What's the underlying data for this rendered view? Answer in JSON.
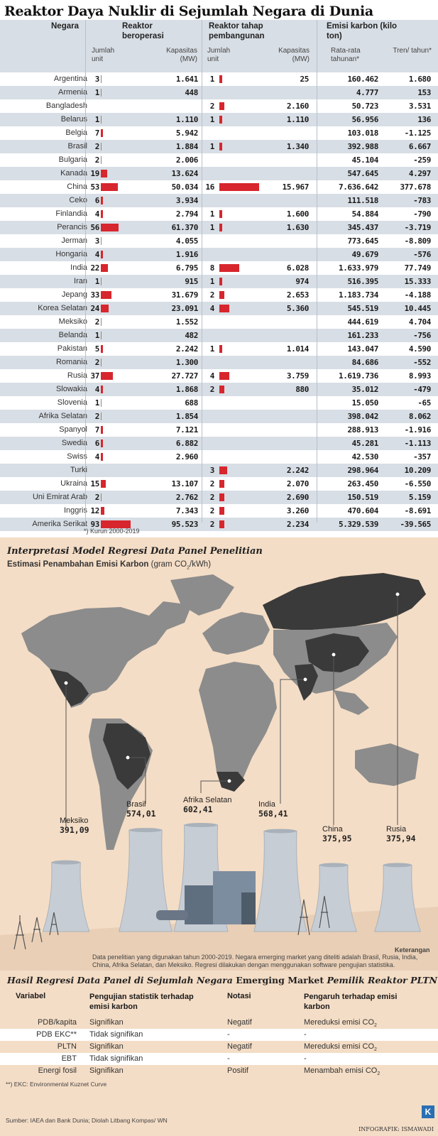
{
  "title": "Reaktor Daya Nuklir di Sejumlah Negara di Dunia",
  "table": {
    "headers": {
      "country": "Negara",
      "operating": "Reaktor beroperasi",
      "construction": "Reaktor tahap pembangunan",
      "emission": "Emisi karbon (kilo ton)",
      "units": "Jumlah unit",
      "capacity": "Kapasitas (MW)",
      "annual": "Rata-rata tahunan*",
      "trend": "Tren/ tahun*"
    },
    "rows": [
      {
        "country": "Argentina",
        "op_units": "3",
        "op_cap": "1.641",
        "con_units": "1",
        "con_cap": "25",
        "em_avg": "160.462",
        "em_trend": "1.680"
      },
      {
        "country": "Armenia",
        "op_units": "1",
        "op_cap": "448",
        "con_units": "",
        "con_cap": "",
        "em_avg": "4.777",
        "em_trend": "153"
      },
      {
        "country": "Bangladesh",
        "op_units": "",
        "op_cap": "",
        "con_units": "2",
        "con_cap": "2.160",
        "em_avg": "50.723",
        "em_trend": "3.531"
      },
      {
        "country": "Belarus",
        "op_units": "1",
        "op_cap": "1.110",
        "con_units": "1",
        "con_cap": "1.110",
        "em_avg": "56.956",
        "em_trend": "136"
      },
      {
        "country": "Belgia",
        "op_units": "7",
        "op_cap": "5.942",
        "con_units": "",
        "con_cap": "",
        "em_avg": "103.018",
        "em_trend": "-1.125"
      },
      {
        "country": "Brasil",
        "op_units": "2",
        "op_cap": "1.884",
        "con_units": "1",
        "con_cap": "1.340",
        "em_avg": "392.988",
        "em_trend": "6.667"
      },
      {
        "country": "Bulgaria",
        "op_units": "2",
        "op_cap": "2.006",
        "con_units": "",
        "con_cap": "",
        "em_avg": "45.104",
        "em_trend": "-259"
      },
      {
        "country": "Kanada",
        "op_units": "19",
        "op_cap": "13.624",
        "con_units": "",
        "con_cap": "",
        "em_avg": "547.645",
        "em_trend": "4.297"
      },
      {
        "country": "China",
        "op_units": "53",
        "op_cap": "50.034",
        "con_units": "16",
        "con_cap": "15.967",
        "em_avg": "7.636.642",
        "em_trend": "377.678"
      },
      {
        "country": "Ceko",
        "op_units": "6",
        "op_cap": "3.934",
        "con_units": "",
        "con_cap": "",
        "em_avg": "111.518",
        "em_trend": "-783"
      },
      {
        "country": "Finlandia",
        "op_units": "4",
        "op_cap": "2.794",
        "con_units": "1",
        "con_cap": "1.600",
        "em_avg": "54.884",
        "em_trend": "-790"
      },
      {
        "country": "Perancis",
        "op_units": "56",
        "op_cap": "61.370",
        "con_units": "1",
        "con_cap": "1.630",
        "em_avg": "345.437",
        "em_trend": "-3.719"
      },
      {
        "country": "Jerman",
        "op_units": "3",
        "op_cap": "4.055",
        "con_units": "",
        "con_cap": "",
        "em_avg": "773.645",
        "em_trend": "-8.809"
      },
      {
        "country": "Hongaria",
        "op_units": "4",
        "op_cap": "1.916",
        "con_units": "",
        "con_cap": "",
        "em_avg": "49.679",
        "em_trend": "-576"
      },
      {
        "country": "India",
        "op_units": "22",
        "op_cap": "6.795",
        "con_units": "8",
        "con_cap": "6.028",
        "em_avg": "1.633.979",
        "em_trend": "77.749"
      },
      {
        "country": "Iran",
        "op_units": "1",
        "op_cap": "915",
        "con_units": "1",
        "con_cap": "974",
        "em_avg": "516.395",
        "em_trend": "15.333"
      },
      {
        "country": "Jepang",
        "op_units": "33",
        "op_cap": "31.679",
        "con_units": "2",
        "con_cap": "2.653",
        "em_avg": "1.183.734",
        "em_trend": "-4.188"
      },
      {
        "country": "Korea Selatan",
        "op_units": "24",
        "op_cap": "23.091",
        "con_units": "4",
        "con_cap": "5.360",
        "em_avg": "545.519",
        "em_trend": "10.445"
      },
      {
        "country": "Meksiko",
        "op_units": "2",
        "op_cap": "1.552",
        "con_units": "",
        "con_cap": "",
        "em_avg": "444.619",
        "em_trend": "4.704"
      },
      {
        "country": "Belanda",
        "op_units": "1",
        "op_cap": "482",
        "con_units": "",
        "con_cap": "",
        "em_avg": "161.233",
        "em_trend": "-756"
      },
      {
        "country": "Pakistan",
        "op_units": "5",
        "op_cap": "2.242",
        "con_units": "1",
        "con_cap": "1.014",
        "em_avg": "143.047",
        "em_trend": "4.590"
      },
      {
        "country": "Romania",
        "op_units": "2",
        "op_cap": "1.300",
        "con_units": "",
        "con_cap": "",
        "em_avg": "84.686",
        "em_trend": "-552"
      },
      {
        "country": "Rusia",
        "op_units": "37",
        "op_cap": "27.727",
        "con_units": "4",
        "con_cap": "3.759",
        "em_avg": "1.619.736",
        "em_trend": "8.993"
      },
      {
        "country": "Slowakia",
        "op_units": "4",
        "op_cap": "1.868",
        "con_units": "2",
        "con_cap": "880",
        "em_avg": "35.012",
        "em_trend": "-479"
      },
      {
        "country": "Slovenia",
        "op_units": "1",
        "op_cap": "688",
        "con_units": "",
        "con_cap": "",
        "em_avg": "15.050",
        "em_trend": "-65"
      },
      {
        "country": "Afrika Selatan",
        "op_units": "2",
        "op_cap": "1.854",
        "con_units": "",
        "con_cap": "",
        "em_avg": "398.042",
        "em_trend": "8.062"
      },
      {
        "country": "Spanyol",
        "op_units": "7",
        "op_cap": "7.121",
        "con_units": "",
        "con_cap": "",
        "em_avg": "288.913",
        "em_trend": "-1.916"
      },
      {
        "country": "Swedia",
        "op_units": "6",
        "op_cap": "6.882",
        "con_units": "",
        "con_cap": "",
        "em_avg": "45.281",
        "em_trend": "-1.113"
      },
      {
        "country": "Swiss",
        "op_units": "4",
        "op_cap": "2.960",
        "con_units": "",
        "con_cap": "",
        "em_avg": "42.530",
        "em_trend": "-357"
      },
      {
        "country": "Turki",
        "op_units": "",
        "op_cap": "",
        "con_units": "3",
        "con_cap": "2.242",
        "em_avg": "298.964",
        "em_trend": "10.209"
      },
      {
        "country": "Ukraina",
        "op_units": "15",
        "op_cap": "13.107",
        "con_units": "2",
        "con_cap": "2.070",
        "em_avg": "263.450",
        "em_trend": "-6.550"
      },
      {
        "country": "Uni Emirat Arab",
        "op_units": "2",
        "op_cap": "2.762",
        "con_units": "2",
        "con_cap": "2.690",
        "em_avg": "150.519",
        "em_trend": "5.159"
      },
      {
        "country": "Inggris",
        "op_units": "12",
        "op_cap": "7.343",
        "con_units": "2",
        "con_cap": "3.260",
        "em_avg": "470.604",
        "em_trend": "-8.691"
      },
      {
        "country": "Amerika Serikat",
        "op_units": "93",
        "op_cap": "95.523",
        "con_units": "2",
        "con_cap": "2.234",
        "em_avg": "5.329.539",
        "em_trend": "-39.565"
      }
    ],
    "footnote": "*) Kurun 2000-2019"
  },
  "chart_data": {
    "type": "bar",
    "title": "Estimasi Penambahan Emisi Karbon (gram CO2/kWh)",
    "categories": [
      "Meksiko",
      "Brasil",
      "Afrika Selatan",
      "India",
      "China",
      "Rusia"
    ],
    "values": [
      391.09,
      574.01,
      602.41,
      568.41,
      375.95,
      375.94
    ],
    "value_labels": [
      "391,09",
      "574,01",
      "602,41",
      "568,41",
      "375,95",
      "375,94"
    ]
  },
  "model": {
    "heading": "Interpretasi Model Regresi Data Panel Penelitian",
    "subtitle_pre": "Estimasi Penambahan Emisi Karbon",
    "subtitle_unit_pre": "(gram CO",
    "subtitle_unit_sub": "2",
    "subtitle_unit_post": "/kWh)",
    "note_title": "Keterangan",
    "note_text": "Data penelitian yang digunakan tahun 2000-2019. Negara emerging market yang diteliti adalah Brasil, Rusia, India, China, Afrika Selatan, dan Meksiko. Regresi dilakukan dengan menggunakan software pengujian statistika."
  },
  "regression": {
    "heading_pre": "Hasil Regresi Data Panel di Sejumlah Negara ",
    "heading_em": "Emerging Market",
    "heading_post": " Pemilik Reaktor PLTN",
    "headers": {
      "variable": "Variabel",
      "test": "Pengujian statistik terhadap emisi karbon",
      "notation": "Notasi",
      "effect": "Pengaruh terhadap emisi karbon"
    },
    "rows": [
      {
        "variable": "PDB/kapita",
        "test": "Signifikan",
        "notation": "Negatif",
        "effect": "Mereduksi emisi CO",
        "effect_sub": "2"
      },
      {
        "variable": "PDB EKC**",
        "test": "Tidak signifikan",
        "notation": "-",
        "effect": "-",
        "effect_sub": ""
      },
      {
        "variable": "PLTN",
        "test": "Signifikan",
        "notation": "Negatif",
        "effect": "Mereduksi emisi CO",
        "effect_sub": "2"
      },
      {
        "variable": "EBT",
        "test": "Tidak signifikan",
        "notation": "-",
        "effect": "-",
        "effect_sub": ""
      },
      {
        "variable": "Energi fosil",
        "test": "Signifikan",
        "notation": "Positif",
        "effect": "Menambah emisi CO",
        "effect_sub": "2"
      }
    ],
    "footnote": "**) EKC: Environmental Kuznet Curve",
    "source": "Sumber: IAEA dan Bank Dunia; Diolah Litbang Kompas/ WN",
    "credit": "INFOGRAFIK: ISMAWADI",
    "logo": "K"
  },
  "colors": {
    "bar": "#d7262d",
    "band": "#d8dee5",
    "peach": "#f4ddc6",
    "map_land": "#8c8c8c",
    "map_highlight": "#3a3a3a"
  }
}
